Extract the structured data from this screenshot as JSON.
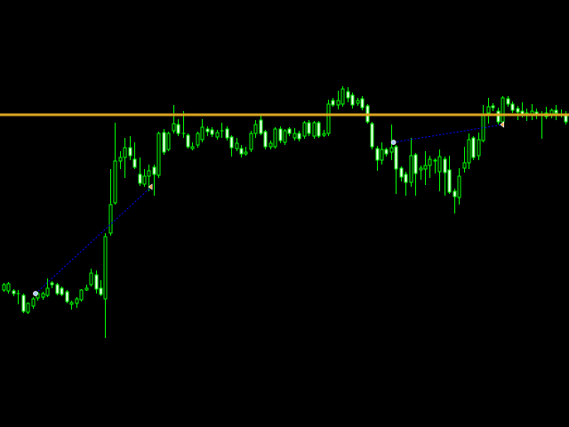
{
  "chart_data": {
    "type": "candlestick",
    "title": "",
    "xlabel": "",
    "ylabel": "",
    "ylim": [
      0,
      480
    ],
    "grid": false,
    "legend": "none",
    "colors": {
      "background": "#000000",
      "wick": "#00ff00",
      "bull_body": "#000000",
      "bear_body": "#ffffff",
      "body_outline": "#00ff00",
      "level_line": "#daa520",
      "trend_line": "#0000ff",
      "start_marker": "#a8c8ff",
      "end_marker": "#ffa040"
    },
    "candles_ohlc": [
      [
        154,
        162,
        152,
        160
      ],
      [
        153,
        163,
        150,
        161
      ],
      [
        153,
        155,
        147,
        150
      ],
      [
        150,
        154,
        138,
        150
      ],
      [
        148,
        150,
        128,
        130
      ],
      [
        129,
        140,
        127,
        139
      ],
      [
        136,
        146,
        133,
        144
      ],
      [
        145,
        152,
        142,
        150
      ],
      [
        146,
        152,
        143,
        150
      ],
      [
        148,
        167,
        146,
        156
      ],
      [
        162,
        164,
        156,
        160
      ],
      [
        160,
        162,
        148,
        150
      ],
      [
        156,
        158,
        147,
        149
      ],
      [
        152,
        154,
        139,
        141
      ],
      [
        138,
        142,
        132,
        140
      ],
      [
        139,
        146,
        134,
        144
      ],
      [
        143,
        155,
        141,
        154
      ],
      [
        154,
        160,
        153,
        156
      ],
      [
        160,
        178,
        158,
        173
      ],
      [
        171,
        176,
        150,
        155
      ],
      [
        156,
        165,
        147,
        149
      ],
      [
        144,
        218,
        100,
        214
      ],
      [
        218,
        290,
        215,
        250
      ],
      [
        252,
        342,
        250,
        299
      ],
      [
        299,
        310,
        290,
        303
      ],
      [
        303,
        325,
        280,
        314
      ],
      [
        314,
        327,
        300,
        305
      ],
      [
        301,
        320,
        290,
        292
      ],
      [
        284,
        303,
        271,
        274
      ],
      [
        273,
        290,
        270,
        282
      ],
      [
        282,
        295,
        265,
        288
      ],
      [
        292,
        295,
        260,
        284
      ],
      [
        283,
        332,
        280,
        330
      ],
      [
        331,
        335,
        306,
        309
      ],
      [
        312,
        332,
        310,
        330
      ],
      [
        333,
        362,
        330,
        341
      ],
      [
        340,
        346,
        327,
        330
      ],
      [
        330,
        355,
        325,
        330
      ],
      [
        328,
        330,
        313,
        315
      ],
      [
        313,
        320,
        311,
        315
      ],
      [
        317,
        332,
        314,
        330
      ],
      [
        323,
        346,
        320,
        337
      ],
      [
        335,
        338,
        327,
        332
      ],
      [
        334,
        337,
        326,
        329
      ],
      [
        326,
        334,
        323,
        331
      ],
      [
        333,
        342,
        325,
        333
      ],
      [
        335,
        338,
        322,
        325
      ],
      [
        326,
        328,
        304,
        314
      ],
      [
        313,
        325,
        310,
        319
      ],
      [
        313,
        317,
        303,
        307
      ],
      [
        307,
        315,
        305,
        309
      ],
      [
        312,
        333,
        309,
        330
      ],
      [
        330,
        345,
        325,
        340
      ],
      [
        345,
        352,
        328,
        330
      ],
      [
        332,
        334,
        312,
        315
      ],
      [
        315,
        322,
        312,
        319
      ],
      [
        315,
        337,
        313,
        335
      ],
      [
        335,
        338,
        319,
        322
      ],
      [
        320,
        335,
        317,
        333
      ],
      [
        335,
        337,
        327,
        330
      ],
      [
        325,
        336,
        322,
        330
      ],
      [
        330,
        333,
        321,
        324
      ],
      [
        327,
        344,
        324,
        342
      ],
      [
        342,
        345,
        327,
        330
      ],
      [
        327,
        344,
        324,
        342
      ],
      [
        342,
        344,
        325,
        327
      ],
      [
        328,
        334,
        326,
        330
      ],
      [
        330,
        368,
        327,
        363
      ],
      [
        367,
        370,
        360,
        362
      ],
      [
        362,
        378,
        357,
        367
      ],
      [
        363,
        383,
        360,
        380
      ],
      [
        377,
        382,
        365,
        370
      ],
      [
        373,
        376,
        358,
        362
      ],
      [
        364,
        370,
        361,
        367
      ],
      [
        369,
        372,
        356,
        359
      ],
      [
        361,
        363,
        341,
        343
      ],
      [
        341,
        343,
        312,
        315
      ],
      [
        313,
        316,
        288,
        300
      ],
      [
        300,
        320,
        295,
        312
      ],
      [
        312,
        314,
        304,
        307
      ],
      [
        309,
        340,
        300,
        314
      ],
      [
        315,
        317,
        262,
        290
      ],
      [
        291,
        293,
        276,
        281
      ],
      [
        284,
        287,
        260,
        275
      ],
      [
        275,
        325,
        270,
        305
      ],
      [
        306,
        308,
        260,
        285
      ],
      [
        289,
        294,
        278,
        291
      ],
      [
        290,
        310,
        272,
        294
      ],
      [
        294,
        305,
        280,
        301
      ],
      [
        300,
        302,
        285,
        299
      ],
      [
        287,
        312,
        265,
        304
      ],
      [
        301,
        304,
        260,
        286
      ],
      [
        289,
        305,
        262,
        264
      ],
      [
        265,
        268,
        240,
        259
      ],
      [
        258,
        291,
        250,
        282
      ],
      [
        291,
        315,
        286,
        297
      ],
      [
        297,
        330,
        290,
        323
      ],
      [
        325,
        327,
        300,
        303
      ],
      [
        305,
        331,
        300,
        323
      ],
      [
        322,
        362,
        320,
        352
      ],
      [
        353,
        370,
        341,
        360
      ],
      [
        361,
        364,
        355,
        359
      ],
      [
        355,
        359,
        340,
        343
      ],
      [
        343,
        372,
        340,
        370
      ],
      [
        369,
        372,
        360,
        363
      ],
      [
        363,
        366,
        353,
        356
      ],
      [
        358,
        361,
        345,
        354
      ],
      [
        355,
        365,
        348,
        350
      ],
      [
        353,
        358,
        344,
        353
      ],
      [
        350,
        363,
        345,
        355
      ],
      [
        354,
        358,
        346,
        350
      ],
      [
        351,
        355,
        324,
        351
      ],
      [
        353,
        360,
        346,
        349
      ],
      [
        350,
        358,
        347,
        356
      ],
      [
        356,
        362,
        345,
        353
      ],
      [
        352,
        357,
        348,
        352
      ],
      [
        352,
        355,
        340,
        343
      ]
    ],
    "horizontal_levels": [
      351
    ],
    "trend_lines": [
      {
        "from": [
          6.6,
          150
        ],
        "to": [
          30.5,
          270
        ]
      },
      {
        "from": [
          80.5,
          320
        ],
        "to": [
          103.1,
          340
        ]
      }
    ]
  }
}
